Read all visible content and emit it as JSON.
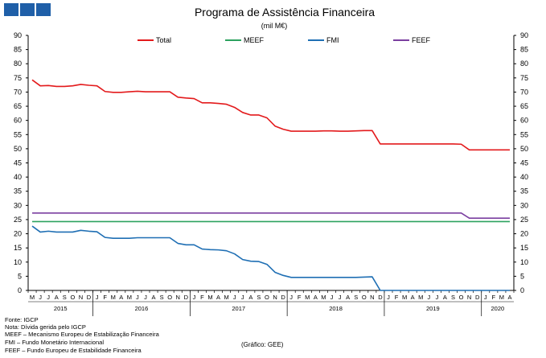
{
  "colors": {
    "logo": "#1f5fa8",
    "total": "#e31a1c",
    "meef": "#2ca25f",
    "fmi": "#1f6fb4",
    "feef": "#7b3fa0",
    "axis": "#000000",
    "grid": "#ffffff"
  },
  "chart_data": {
    "type": "line",
    "title": "Programa de Assistência Financeira",
    "subtitle": "(mil M€)",
    "ylim": [
      0,
      90
    ],
    "yticks": [
      0,
      5,
      10,
      15,
      20,
      25,
      30,
      35,
      40,
      45,
      50,
      55,
      60,
      65,
      70,
      75,
      80,
      85,
      90
    ],
    "legend_position": "top",
    "month_labels": [
      "M",
      "J",
      "J",
      "A",
      "S",
      "O",
      "N",
      "D",
      "J",
      "F",
      "M",
      "A",
      "M",
      "J",
      "J",
      "A",
      "S",
      "O",
      "N",
      "D",
      "J",
      "F",
      "M",
      "A",
      "M",
      "J",
      "J",
      "A",
      "S",
      "O",
      "N",
      "D",
      "J",
      "F",
      "M",
      "A",
      "M",
      "J",
      "J",
      "A",
      "S",
      "O",
      "N",
      "D",
      "J",
      "F",
      "M",
      "A",
      "M",
      "J",
      "J",
      "A",
      "S",
      "O",
      "N",
      "D",
      "J",
      "F",
      "M",
      "A"
    ],
    "year_labels": [
      {
        "label": "2015",
        "start": 0,
        "end": 7
      },
      {
        "label": "2016",
        "start": 8,
        "end": 19
      },
      {
        "label": "2017",
        "start": 20,
        "end": 31
      },
      {
        "label": "2018",
        "start": 32,
        "end": 43
      },
      {
        "label": "2019",
        "start": 44,
        "end": 55
      },
      {
        "label": "2020",
        "start": 56,
        "end": 59
      }
    ],
    "series": [
      {
        "name": "Total",
        "color_key": "total",
        "values": [
          74.3,
          72.2,
          72.3,
          72.0,
          72.0,
          72.2,
          72.7,
          72.4,
          72.2,
          70.2,
          69.9,
          69.9,
          70.1,
          70.3,
          70.1,
          70.1,
          70.1,
          70.1,
          68.2,
          67.9,
          67.7,
          66.2,
          66.2,
          66.0,
          65.7,
          64.6,
          62.8,
          61.9,
          61.9,
          60.9,
          58.0,
          56.9,
          56.2,
          56.2,
          56.2,
          56.2,
          56.3,
          56.3,
          56.2,
          56.2,
          56.3,
          56.4,
          56.4,
          51.7,
          51.7,
          51.7,
          51.7,
          51.7,
          51.7,
          51.7,
          51.7,
          51.7,
          51.7,
          51.6,
          49.6,
          49.6,
          49.6,
          49.6,
          49.6,
          49.6
        ]
      },
      {
        "name": "MEEF",
        "color_key": "meef",
        "values": [
          24.3,
          24.3,
          24.3,
          24.3,
          24.3,
          24.3,
          24.3,
          24.3,
          24.3,
          24.3,
          24.3,
          24.3,
          24.3,
          24.3,
          24.3,
          24.3,
          24.3,
          24.3,
          24.3,
          24.3,
          24.3,
          24.3,
          24.3,
          24.3,
          24.3,
          24.3,
          24.3,
          24.3,
          24.3,
          24.3,
          24.3,
          24.3,
          24.3,
          24.3,
          24.3,
          24.3,
          24.3,
          24.3,
          24.3,
          24.3,
          24.3,
          24.3,
          24.3,
          24.3,
          24.3,
          24.3,
          24.3,
          24.3,
          24.3,
          24.3,
          24.3,
          24.3,
          24.3,
          24.3,
          24.3,
          24.3,
          24.3,
          24.3,
          24.3,
          24.3
        ]
      },
      {
        "name": "FMI",
        "color_key": "fmi",
        "values": [
          22.7,
          20.6,
          20.9,
          20.6,
          20.6,
          20.6,
          21.2,
          20.9,
          20.7,
          18.7,
          18.4,
          18.4,
          18.4,
          18.6,
          18.6,
          18.6,
          18.6,
          18.6,
          16.6,
          16.1,
          16.1,
          14.6,
          14.4,
          14.3,
          14.0,
          12.9,
          10.9,
          10.3,
          10.2,
          9.2,
          6.4,
          5.3,
          4.6,
          4.6,
          4.6,
          4.6,
          4.6,
          4.6,
          4.6,
          4.6,
          4.6,
          4.7,
          4.8,
          0,
          0,
          0,
          0,
          0,
          0,
          0,
          0,
          0,
          0,
          0,
          0,
          0,
          0,
          0,
          0,
          0
        ]
      },
      {
        "name": "FEEF",
        "color_key": "feef",
        "values": [
          27.3,
          27.3,
          27.3,
          27.3,
          27.3,
          27.3,
          27.3,
          27.3,
          27.3,
          27.3,
          27.3,
          27.3,
          27.3,
          27.3,
          27.3,
          27.3,
          27.3,
          27.3,
          27.3,
          27.3,
          27.3,
          27.3,
          27.3,
          27.3,
          27.3,
          27.3,
          27.3,
          27.3,
          27.3,
          27.3,
          27.3,
          27.3,
          27.3,
          27.3,
          27.3,
          27.3,
          27.3,
          27.3,
          27.3,
          27.3,
          27.3,
          27.3,
          27.3,
          27.3,
          27.3,
          27.3,
          27.3,
          27.3,
          27.3,
          27.3,
          27.3,
          27.3,
          27.3,
          27.3,
          25.5,
          25.5,
          25.5,
          25.5,
          25.5,
          25.5
        ]
      }
    ]
  },
  "footnotes": {
    "fonte": "Fonte: IGCP",
    "nota": "Nota: Dívida gerida pelo IGCP",
    "meef": "MEEF – Mecanismo Europeu de Estabilização Financeira",
    "fmi": "FMI – Fundo Monetário Internacional",
    "feef": "FEEF – Fundo Europeu de Estabilidade Financeira"
  },
  "credit": "(Gráfico: GEE)"
}
